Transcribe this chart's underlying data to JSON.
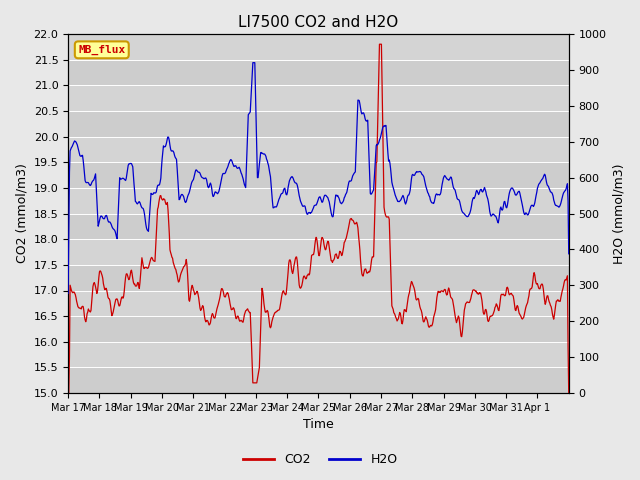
{
  "title": "LI7500 CO2 and H2O",
  "xlabel": "Time",
  "ylabel_left": "CO2 (mmol/m3)",
  "ylabel_right": "H2O (mmol/m3)",
  "co2_ylim": [
    15.0,
    22.0
  ],
  "h2o_ylim": [
    0,
    1000
  ],
  "co2_color": "#cc0000",
  "h2o_color": "#0000cc",
  "fig_bg_color": "#e8e8e8",
  "plot_bg_color": "#d4d4d4",
  "title_fontsize": 11,
  "label_fontsize": 9,
  "tick_fontsize": 8,
  "legend_box_facecolor": "#ffff99",
  "legend_box_edgecolor": "#cc9900",
  "annotation_text": "MB_flux",
  "xtick_labels": [
    "Mar 17",
    "Mar 18",
    "Mar 19",
    "Mar 20",
    "Mar 21",
    "Mar 22",
    "Mar 23",
    "Mar 24",
    "Mar 25",
    "Mar 26",
    "Mar 27",
    "Mar 28",
    "Mar 29",
    "Mar 30",
    "Mar 31",
    "Apr 1"
  ],
  "co2_yticks": [
    15.0,
    15.5,
    16.0,
    16.5,
    17.0,
    17.5,
    18.0,
    18.5,
    19.0,
    19.5,
    20.0,
    20.5,
    21.0,
    21.5,
    22.0
  ],
  "h2o_yticks": [
    0,
    100,
    200,
    300,
    400,
    500,
    600,
    700,
    800,
    900,
    1000
  ]
}
